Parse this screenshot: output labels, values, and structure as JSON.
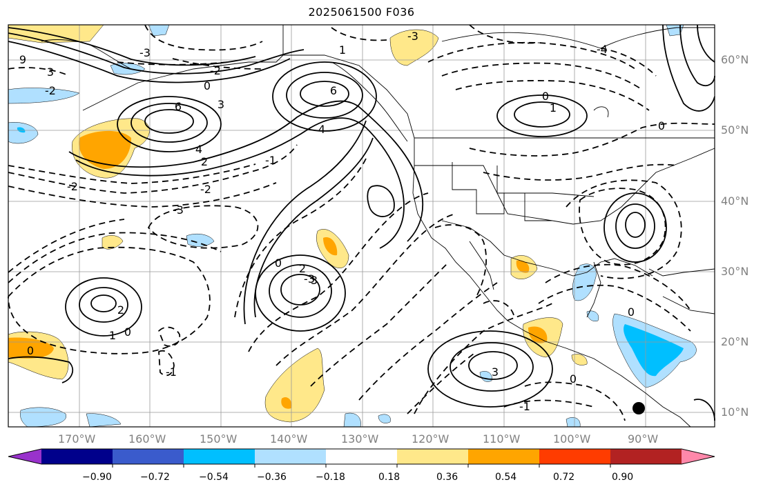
{
  "title": "2025061500 F036",
  "map": {
    "lat_labels": [
      "60°N",
      "50°N",
      "40°N",
      "30°N",
      "20°N",
      "10°N"
    ],
    "lon_labels": [
      "170°W",
      "160°W",
      "150°W",
      "140°W",
      "130°W",
      "120°W",
      "110°W",
      "100°W",
      "90°W"
    ],
    "contour_labels": [
      "-3",
      "-3",
      "-4",
      "-3",
      "-3",
      "-2",
      "-2",
      "-2",
      "-2",
      "-1",
      "-1",
      "-1",
      "0",
      "0",
      "0",
      "0",
      "0",
      "0",
      "0",
      "0",
      "1",
      "1",
      "1",
      "2",
      "2",
      "2",
      "3",
      "3",
      "3",
      "3",
      "4",
      "4",
      "6",
      "6",
      "9"
    ],
    "line_color": "#000000",
    "land_marker": "filled-circle"
  },
  "colorbar": {
    "ticks": [
      "−0.90",
      "−0.72",
      "−0.54",
      "−0.36",
      "−0.18",
      "0.18",
      "0.36",
      "0.54",
      "0.72",
      "0.90"
    ],
    "colors": [
      "#9932cc",
      "#00008b",
      "#3a5bcc",
      "#00bfff",
      "#b0e0ff",
      "#ffffff",
      "#ffe88a",
      "#ffa500",
      "#ff3c00",
      "#b22222",
      "#ff88aa"
    ]
  }
}
